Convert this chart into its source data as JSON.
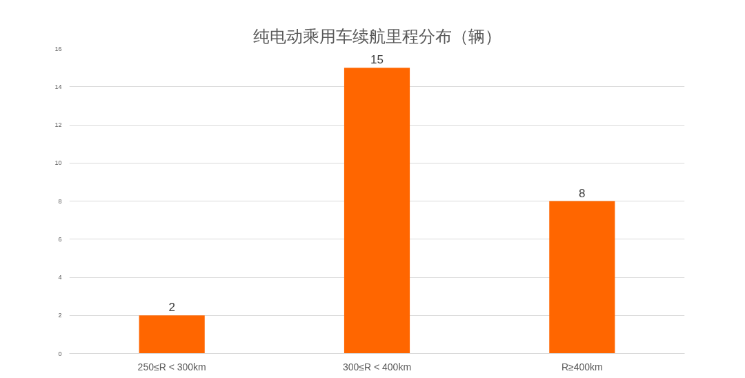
{
  "chart_data": {
    "type": "bar",
    "title": "纯电动乘用车续航里程分布（辆）",
    "categories": [
      "250≤R < 300km",
      "300≤R < 400km",
      "R≥400km"
    ],
    "values": [
      2,
      15,
      8
    ],
    "color": "#ff6600",
    "ylim": [
      0,
      16
    ],
    "yticks": [
      0,
      2,
      4,
      6,
      8,
      10,
      12,
      14,
      16
    ],
    "grid": "y",
    "data_labels": true
  }
}
